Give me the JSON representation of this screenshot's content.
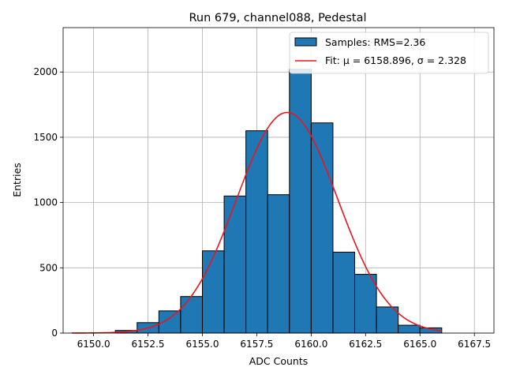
{
  "chart_data": {
    "type": "bar",
    "title": "Run 679, channel088, Pedestal",
    "xlabel": "ADC Counts",
    "ylabel": "Entries",
    "xlim": [
      6148.6,
      6168.4
    ],
    "ylim": [
      0,
      2340
    ],
    "grid": true,
    "legend_position": "top-right",
    "x_ticks": [
      6150.0,
      6152.5,
      6155.0,
      6157.5,
      6160.0,
      6162.5,
      6165.0,
      6167.5
    ],
    "x_tick_labels": [
      "6150.0",
      "6152.5",
      "6155.0",
      "6157.5",
      "6160.0",
      "6162.5",
      "6165.0",
      "6167.5"
    ],
    "y_ticks": [
      0,
      500,
      1000,
      1500,
      2000
    ],
    "y_tick_labels": [
      "0",
      "500",
      "1000",
      "1500",
      "2000"
    ],
    "histogram": {
      "name": "Samples: RMS=2.36",
      "color": "#1f77b4",
      "bin_edges": [
        6149,
        6150,
        6151,
        6152,
        6153,
        6154,
        6155,
        6156,
        6157,
        6158,
        6159,
        6160,
        6161,
        6162,
        6163,
        6164,
        6165,
        6166,
        6167,
        6168
      ],
      "counts": [
        0,
        0,
        20,
        80,
        170,
        280,
        630,
        1050,
        1550,
        1060,
        2020,
        1610,
        620,
        450,
        200,
        60,
        40,
        0,
        0
      ]
    },
    "fit": {
      "name": "Fit: μ = 6158.896, σ = 2.328",
      "color": "#e8171f",
      "mu": 6158.896,
      "sigma": 2.328,
      "amplitude": 1690,
      "x_range": [
        6149,
        6166
      ]
    }
  }
}
